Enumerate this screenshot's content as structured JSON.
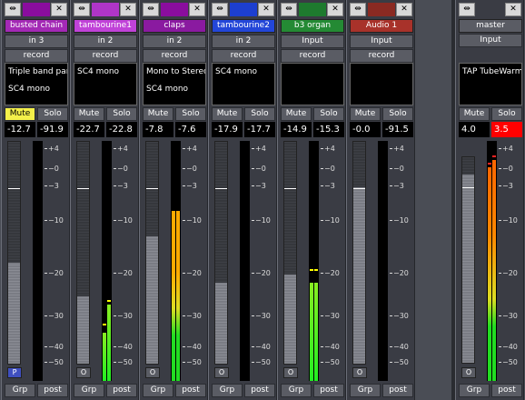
{
  "strips": [
    {
      "name": "busted chain",
      "color": "#8a0d9e",
      "name_bg": "#a329b5",
      "input": "in 3",
      "record": "record",
      "plugins": [
        "Triple band par",
        "SC4 mono"
      ],
      "mute": "Mute",
      "mute_active": true,
      "solo": "Solo",
      "gain": "-12.7",
      "peak": "-91.9",
      "peak_red": false,
      "automation": "P",
      "group": "Grp",
      "meter_point": "post",
      "fader_level": 0.45,
      "meter_l": 0.0,
      "meter_r": 0.0,
      "peak_l": null,
      "peak_r": null
    },
    {
      "name": "tambourine1",
      "color": "#b035c8",
      "name_bg": "#c042d8",
      "input": "in 2",
      "record": "record",
      "plugins": [
        "SC4 mono",
        ""
      ],
      "mute": "Mute",
      "mute_active": false,
      "solo": "Solo",
      "gain": "-22.7",
      "peak": "-22.8",
      "peak_red": false,
      "automation": "O",
      "group": "Grp",
      "meter_point": "post",
      "fader_level": 0.3,
      "meter_l": 0.2,
      "meter_r": 0.32,
      "peak_l": 0.23,
      "peak_r": 0.33
    },
    {
      "name": "claps",
      "color": "#8a0d9e",
      "name_bg": "#8a1aa0",
      "input": "in 2",
      "record": "record",
      "plugins": [
        "Mono to Stereo",
        "SC4 mono"
      ],
      "mute": "Mute",
      "mute_active": false,
      "solo": "Solo",
      "gain": "-7.8",
      "peak": "-7.6",
      "peak_red": false,
      "automation": "O",
      "group": "Grp",
      "meter_point": "post",
      "fader_level": 0.57,
      "meter_l": 0.71,
      "meter_r": 0.71,
      "peak_l": null,
      "peak_r": null
    },
    {
      "name": "tambourine2",
      "color": "#1d3fd0",
      "name_bg": "#2346d8",
      "input": "in 2",
      "record": "record",
      "plugins": [
        "SC4 mono",
        ""
      ],
      "mute": "Mute",
      "mute_active": false,
      "solo": "Solo",
      "gain": "-17.9",
      "peak": "-17.7",
      "peak_red": false,
      "automation": "O",
      "group": "Grp",
      "meter_point": "post",
      "fader_level": 0.36,
      "meter_l": 0.0,
      "meter_r": 0.0,
      "peak_l": null,
      "peak_r": null
    },
    {
      "name": "b3 organ",
      "color": "#1e7a2e",
      "name_bg": "#248a34",
      "input": "Input",
      "record": "record",
      "plugins": [
        "",
        ""
      ],
      "mute": "Mute",
      "mute_active": false,
      "solo": "Solo",
      "gain": "-14.9",
      "peak": "-15.3",
      "peak_red": false,
      "automation": "O",
      "group": "Grp",
      "meter_point": "post",
      "fader_level": 0.4,
      "meter_l": 0.41,
      "meter_r": 0.41,
      "peak_l": 0.46,
      "peak_r": 0.46
    },
    {
      "name": "Audio 1",
      "color": "#8a2a22",
      "name_bg": "#a8322a",
      "input": "Input",
      "record": "record",
      "plugins": [
        "",
        ""
      ],
      "mute": "Mute",
      "mute_active": false,
      "solo": "Solo",
      "gain": "-0.0",
      "peak": "-91.5",
      "peak_red": false,
      "automation": "O",
      "group": "Grp",
      "meter_point": "post",
      "fader_level": 0.79,
      "meter_l": 0.0,
      "meter_r": 0.0,
      "peak_l": null,
      "peak_r": null
    }
  ],
  "master": {
    "name": "master",
    "input": "Input",
    "plugins": [
      "TAP TubeWarmt"
    ],
    "mute": "Mute",
    "solo": "Solo",
    "gain": "4.0",
    "peak": "3.5",
    "peak_red": true,
    "automation": "O",
    "group": "Grp",
    "meter_point": "post",
    "fader_level": 0.91,
    "meter_l": 0.89,
    "meter_r": 0.92,
    "peak_l": 0.9,
    "peak_r": 0.93
  },
  "scale_labels": [
    "4",
    "0",
    "3",
    "10",
    "20",
    "30",
    "40",
    "50"
  ],
  "scale_prefix": [
    "−",
    "−",
    "−",
    "−",
    "−",
    "−",
    "−",
    "−"
  ],
  "icons": {
    "width_toggle": "arrows-horizontal-icon",
    "hide": "close-x-icon"
  }
}
